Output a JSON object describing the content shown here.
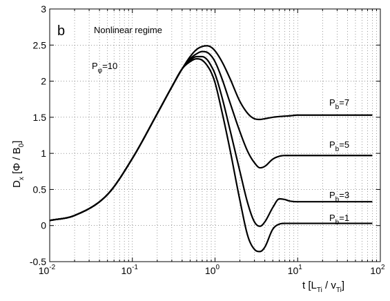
{
  "chart_data": {
    "type": "line",
    "panel_label": "b",
    "title": "Nonlinear regime",
    "xlabel": {
      "main": "t [L",
      "sub1": "Ti",
      "mid": " / v",
      "sub2": "Ti",
      "close": "]"
    },
    "ylabel": {
      "main": "D",
      "sub1": "x",
      "mid": " [Φ / B",
      "sub2": "0",
      "close": "]"
    },
    "xscale": "log",
    "xlim": [
      0.01,
      100
    ],
    "ylim": [
      -0.5,
      3
    ],
    "grid": true,
    "xticks": [
      {
        "value": 0.01,
        "base": "10",
        "exp": "-2"
      },
      {
        "value": 0.1,
        "base": "10",
        "exp": "-1"
      },
      {
        "value": 1,
        "base": "10",
        "exp": "0"
      },
      {
        "value": 10,
        "base": "10",
        "exp": "1"
      },
      {
        "value": 100,
        "base": "10",
        "exp": "2"
      }
    ],
    "yticks": [
      {
        "value": -0.5,
        "label": "-0.5"
      },
      {
        "value": 0,
        "label": "0"
      },
      {
        "value": 0.5,
        "label": "0.5"
      },
      {
        "value": 1,
        "label": "1"
      },
      {
        "value": 1.5,
        "label": "1.5"
      },
      {
        "value": 2,
        "label": "2"
      },
      {
        "value": 2.5,
        "label": "2.5"
      },
      {
        "value": 3,
        "label": "3"
      }
    ],
    "parameter_note": {
      "main": "P",
      "sub": "φ",
      "value": "=10"
    },
    "series": [
      {
        "key": "pb7",
        "label": {
          "main": "P",
          "sub": "b",
          "value": "=7"
        },
        "x": [
          0.01,
          0.02,
          0.05,
          0.1,
          0.2,
          0.3,
          0.4,
          0.5,
          0.6,
          0.7,
          0.8,
          0.9,
          1.0,
          1.2,
          1.5,
          2.0,
          2.5,
          3.0,
          3.5,
          4.0,
          5.0,
          6.0,
          8.0,
          10,
          20,
          50,
          80
        ],
        "y": [
          0.07,
          0.14,
          0.43,
          0.93,
          1.55,
          1.92,
          2.17,
          2.34,
          2.44,
          2.48,
          2.49,
          2.47,
          2.42,
          2.28,
          2.05,
          1.72,
          1.55,
          1.48,
          1.47,
          1.48,
          1.5,
          1.51,
          1.52,
          1.53,
          1.53,
          1.53,
          1.53
        ]
      },
      {
        "key": "pb5",
        "label": {
          "main": "P",
          "sub": "b",
          "value": "=5"
        },
        "x": [
          0.01,
          0.02,
          0.05,
          0.1,
          0.2,
          0.3,
          0.4,
          0.5,
          0.6,
          0.7,
          0.8,
          0.9,
          1.0,
          1.2,
          1.5,
          2.0,
          2.5,
          3.0,
          3.5,
          4.0,
          5.0,
          6.0,
          7.0,
          8.0,
          10,
          20,
          50,
          80
        ],
        "y": [
          0.07,
          0.14,
          0.43,
          0.93,
          1.55,
          1.92,
          2.17,
          2.31,
          2.38,
          2.41,
          2.4,
          2.35,
          2.27,
          2.05,
          1.72,
          1.3,
          1.02,
          0.87,
          0.8,
          0.82,
          0.92,
          0.96,
          0.97,
          0.97,
          0.97,
          0.97,
          0.97,
          0.97
        ]
      },
      {
        "key": "pb3",
        "label": {
          "main": "P",
          "sub": "b",
          "value": "=3"
        },
        "x": [
          0.01,
          0.02,
          0.05,
          0.1,
          0.2,
          0.3,
          0.4,
          0.5,
          0.6,
          0.7,
          0.8,
          0.9,
          1.0,
          1.2,
          1.5,
          2.0,
          2.5,
          3.0,
          3.5,
          4.0,
          5.0,
          6.0,
          7.0,
          8.0,
          10,
          20,
          50,
          80
        ],
        "y": [
          0.07,
          0.14,
          0.43,
          0.93,
          1.55,
          1.92,
          2.17,
          2.29,
          2.34,
          2.34,
          2.3,
          2.21,
          2.1,
          1.8,
          1.35,
          0.75,
          0.3,
          0.05,
          -0.01,
          0.05,
          0.25,
          0.37,
          0.36,
          0.34,
          0.33,
          0.33,
          0.33,
          0.33
        ]
      },
      {
        "key": "pb1",
        "label": {
          "main": "P",
          "sub": "b",
          "value": "=1"
        },
        "x": [
          0.01,
          0.02,
          0.05,
          0.1,
          0.2,
          0.3,
          0.4,
          0.5,
          0.6,
          0.7,
          0.8,
          0.9,
          1.0,
          1.2,
          1.5,
          2.0,
          2.5,
          3.0,
          3.5,
          4.0,
          5.0,
          6.0,
          7.0,
          8.0,
          10,
          20,
          50,
          80
        ],
        "y": [
          0.07,
          0.14,
          0.43,
          0.93,
          1.55,
          1.92,
          2.17,
          2.27,
          2.31,
          2.29,
          2.22,
          2.12,
          1.98,
          1.6,
          1.08,
          0.35,
          -0.15,
          -0.33,
          -0.36,
          -0.3,
          -0.05,
          0.02,
          0.03,
          0.03,
          0.03,
          0.03,
          0.03,
          0.03
        ]
      }
    ]
  }
}
